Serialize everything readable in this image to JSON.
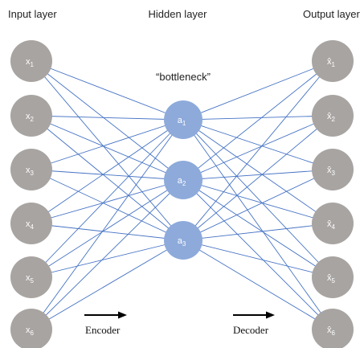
{
  "layers": {
    "input_title": "Input layer",
    "hidden_title": "Hidden layer",
    "output_title": "Output layer",
    "bottleneck_label": "“bottleneck”"
  },
  "nodes": {
    "input": [
      {
        "base": "x",
        "sub": "1"
      },
      {
        "base": "x",
        "sub": "2"
      },
      {
        "base": "x",
        "sub": "3"
      },
      {
        "base": "x",
        "sub": "4"
      },
      {
        "base": "x",
        "sub": "5"
      },
      {
        "base": "x",
        "sub": "6"
      }
    ],
    "hidden": [
      {
        "base": "a",
        "sub": "1"
      },
      {
        "base": "a",
        "sub": "2"
      },
      {
        "base": "a",
        "sub": "3"
      }
    ],
    "output": [
      {
        "base": "x̂",
        "sub": "1"
      },
      {
        "base": "x̂",
        "sub": "2"
      },
      {
        "base": "x̂",
        "sub": "3"
      },
      {
        "base": "x̂",
        "sub": "4"
      },
      {
        "base": "x̂",
        "sub": "5"
      },
      {
        "base": "x̂",
        "sub": "6"
      }
    ]
  },
  "arrows": {
    "encoder_label": "Encoder",
    "decoder_label": "Decoder"
  },
  "colors": {
    "io_node": "#a8a4a2",
    "hidden_node": "#8eaadb",
    "edge": "#4472c4",
    "arrow": "#000000"
  }
}
